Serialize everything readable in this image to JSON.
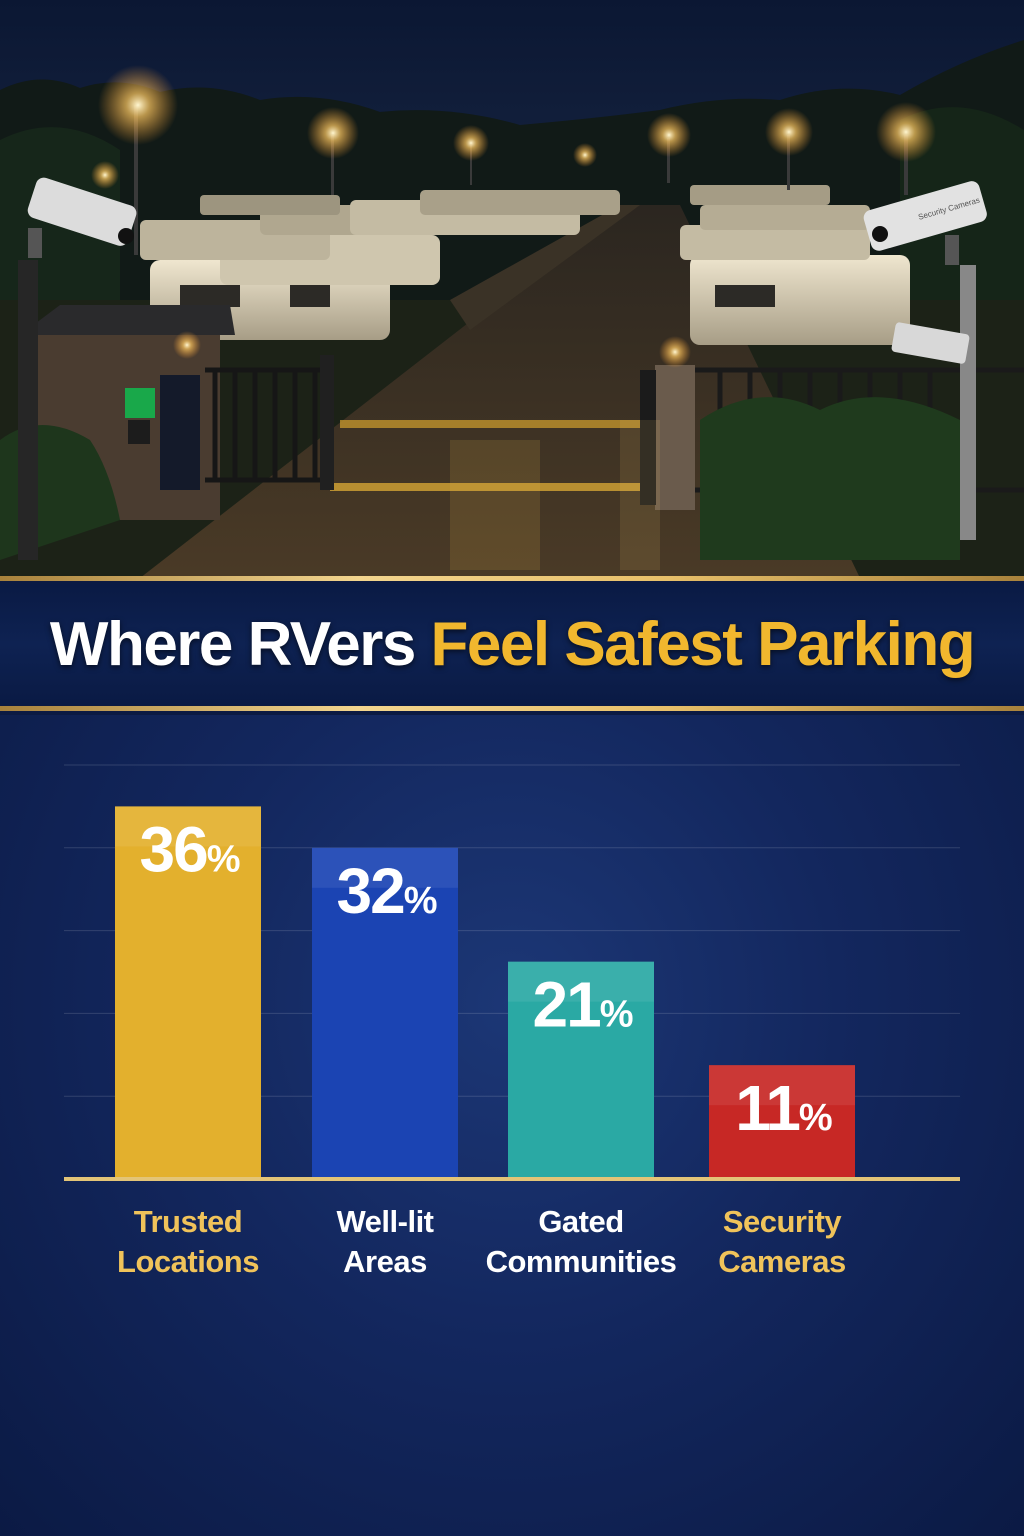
{
  "title": {
    "part1": "Where RVers ",
    "part2": "Feel Safest Parking"
  },
  "colors": {
    "title_white": "#ffffff",
    "title_gold": "#f1b72e",
    "background": "#0c1a42",
    "trusted": "#e3b02d",
    "well_lit": "#1b44b3",
    "gated": "#2aa9a4",
    "cameras": "#c72825"
  },
  "photo": {
    "sign_text": "Security Cameras"
  },
  "chart_data": {
    "type": "bar",
    "title": "Where RVers Feel Safest Parking",
    "xlabel": "",
    "ylabel": "",
    "ylim": [
      0,
      40
    ],
    "grid": true,
    "legend": "none",
    "categories": [
      [
        "Trusted",
        "Locations"
      ],
      [
        "Well-lit",
        "Areas"
      ],
      [
        "Gated",
        "Communities"
      ],
      [
        "Security",
        "Cameras"
      ]
    ],
    "values": [
      36,
      32,
      21,
      11
    ],
    "value_labels": [
      "36",
      "32",
      "21",
      "11"
    ],
    "unit": "%",
    "bar_colors": [
      "#e3b02d",
      "#1b44b3",
      "#2aa9a4",
      "#c72825"
    ],
    "label_colors": [
      "#f0c35a",
      "#ffffff",
      "#ffffff",
      "#f0c35a"
    ]
  }
}
